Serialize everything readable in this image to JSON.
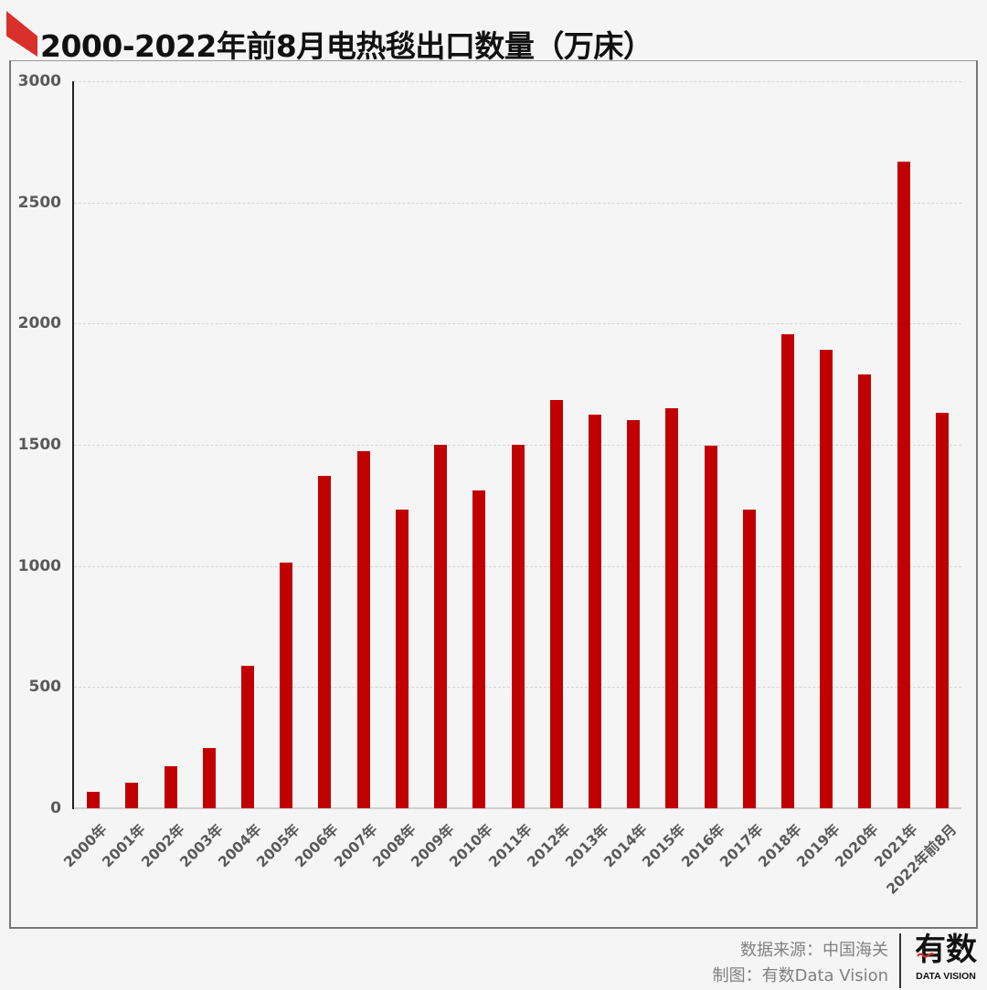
{
  "title": "2000-2022年前8月电热毯出口数量（万床）",
  "colors": {
    "bar": "#c00000",
    "accent": "#d9302c",
    "grid": "#d6d6d6",
    "tick_text": "#595959"
  },
  "footer": {
    "source": "数据来源：中国海关",
    "credit": "制图：有数Data Vision",
    "logo_main": "有数",
    "logo_sub": "DATA VISION"
  },
  "chart_data": {
    "type": "bar",
    "title": "2000-2022年前8月电热毯出口数量（万床）",
    "xlabel": "",
    "ylabel": "",
    "ylim": [
      0,
      3000
    ],
    "yticks": [
      0,
      500,
      1000,
      1500,
      2000,
      2500,
      3000
    ],
    "grid": true,
    "grid_style": "dashed horizontal",
    "legend": null,
    "categories": [
      "2000年",
      "2001年",
      "2002年",
      "2003年",
      "2004年",
      "2005年",
      "2006年",
      "2007年",
      "2008年",
      "2009年",
      "2010年",
      "2011年",
      "2012年",
      "2013年",
      "2014年",
      "2015年",
      "2016年",
      "2017年",
      "2018年",
      "2019年",
      "2020年",
      "2021年",
      "2022年前8月"
    ],
    "values": [
      69,
      105,
      175,
      248,
      588,
      1015,
      1372,
      1475,
      1232,
      1500,
      1313,
      1500,
      1683,
      1626,
      1602,
      1652,
      1495,
      1232,
      1955,
      1891,
      1792,
      2669,
      1631
    ]
  }
}
